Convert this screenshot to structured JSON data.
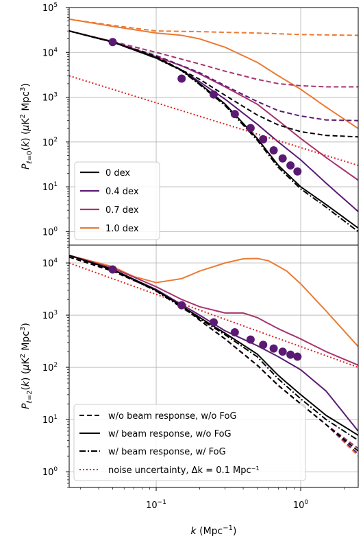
{
  "chart_data": [
    {
      "type": "line",
      "panel": "top",
      "xscale": "log",
      "yscale": "log",
      "xlim": [
        0.025,
        2.5
      ],
      "ylim": [
        0.5,
        100000
      ],
      "ylabel": "P_{ℓ=0}(k) (μK² Mpc³)",
      "grid": true,
      "legend_position": "lower-left",
      "y_tick_labels": [
        "10^0",
        "10^1",
        "10^2",
        "10^3",
        "10^4",
        "10^5"
      ],
      "legend": [
        "0 dex",
        "0.4 dex",
        "0.7 dex",
        "1.0 dex"
      ],
      "colors": {
        "0 dex": "#000000",
        "0.4 dex": "#5a1a73",
        "0.7 dex": "#a8336e",
        "1.0 dex": "#ec7a33",
        "noise": "#e0201f"
      },
      "series": [
        {
          "name": "0 dex",
          "style": "dashed",
          "x": [
            0.025,
            0.05,
            0.1,
            0.2,
            0.3,
            0.5,
            0.7,
            1.0,
            1.5,
            2.5
          ],
          "y": [
            30000,
            17000,
            8000,
            2500,
            1100,
            400,
            240,
            170,
            140,
            130
          ]
        },
        {
          "name": "0 dex",
          "style": "solid",
          "x": [
            0.025,
            0.05,
            0.1,
            0.15,
            0.2,
            0.3,
            0.5,
            0.7,
            1.0,
            1.5,
            2.5
          ],
          "y": [
            30000,
            17000,
            7500,
            4000,
            2000,
            700,
            120,
            30,
            10,
            4,
            1.2
          ]
        },
        {
          "name": "0 dex",
          "style": "dashdot",
          "x": [
            0.025,
            0.05,
            0.1,
            0.15,
            0.2,
            0.3,
            0.5,
            0.7,
            1.0,
            1.5,
            2.5
          ],
          "y": [
            30000,
            17000,
            7400,
            3900,
            1900,
            650,
            110,
            27,
            9,
            3.5,
            1.0
          ]
        },
        {
          "name": "0.4 dex",
          "style": "dashed",
          "x": [
            0.025,
            0.05,
            0.1,
            0.2,
            0.3,
            0.5,
            0.7,
            1.0,
            1.5,
            2.5
          ],
          "y": [
            30000,
            17000,
            8500,
            3500,
            1800,
            800,
            500,
            380,
            310,
            300
          ]
        },
        {
          "name": "0.4 dex",
          "style": "solid",
          "x": [
            0.025,
            0.05,
            0.1,
            0.15,
            0.2,
            0.3,
            0.5,
            0.7,
            1.0,
            1.5,
            2.5
          ],
          "y": [
            30000,
            17000,
            7600,
            4000,
            2200,
            900,
            250,
            100,
            40,
            12,
            2.8
          ]
        },
        {
          "name": "0.7 dex",
          "style": "dashed",
          "x": [
            0.025,
            0.05,
            0.1,
            0.2,
            0.3,
            0.5,
            0.7,
            1.0,
            1.5,
            2.5
          ],
          "y": [
            30000,
            17500,
            10000,
            5500,
            3800,
            2500,
            2000,
            1800,
            1700,
            1700
          ]
        },
        {
          "name": "0.7 dex",
          "style": "solid",
          "x": [
            0.025,
            0.05,
            0.1,
            0.15,
            0.2,
            0.3,
            0.5,
            0.7,
            1.0,
            1.5,
            2.5
          ],
          "y": [
            30000,
            17500,
            8000,
            5000,
            3300,
            1700,
            700,
            300,
            120,
            45,
            14
          ]
        },
        {
          "name": "1.0 dex",
          "style": "dashed",
          "x": [
            0.025,
            0.05,
            0.1,
            0.2,
            0.3,
            0.5,
            1.0,
            2.5
          ],
          "y": [
            55000,
            40000,
            30000,
            29000,
            28000,
            27000,
            25000,
            24000
          ]
        },
        {
          "name": "1.0 dex",
          "style": "solid",
          "x": [
            0.025,
            0.05,
            0.1,
            0.15,
            0.2,
            0.3,
            0.5,
            0.7,
            1.0,
            1.5,
            2.5
          ],
          "y": [
            55000,
            38000,
            27000,
            24000,
            20000,
            13000,
            6000,
            3000,
            1500,
            600,
            200
          ]
        },
        {
          "name": "noise",
          "style": "dotted",
          "x": [
            0.025,
            2.5
          ],
          "y": [
            3000,
            30
          ]
        }
      ],
      "markers": [
        {
          "series": "0.4 dex",
          "x": [
            0.05,
            0.15,
            0.25,
            0.35,
            0.45,
            0.55,
            0.65,
            0.75,
            0.85,
            0.95
          ],
          "y": [
            17000,
            2600,
            1150,
            420,
            205,
            115,
            65,
            43,
            30,
            22
          ]
        }
      ]
    },
    {
      "type": "line",
      "panel": "bottom",
      "xscale": "log",
      "yscale": "log",
      "xlim": [
        0.025,
        2.5
      ],
      "ylim": [
        0.5,
        22000
      ],
      "xlabel": "k (Mpc⁻¹)",
      "ylabel": "P_{ℓ=2}(k) (μK² Mpc³)",
      "grid": true,
      "legend_position": "lower-left",
      "x_tick_labels": [
        "10^-1",
        "10^0"
      ],
      "y_tick_labels": [
        "10^0",
        "10^1",
        "10^2",
        "10^3",
        "10^4"
      ],
      "legend": [
        "w/o beam response, w/o FoG",
        "w/ beam response, w/o FoG",
        "w/ beam response, w/ FoG",
        "noise uncertainty, Δk = 0.1 Mpc⁻¹"
      ],
      "series": [
        {
          "name": "0 dex",
          "style": "dashed",
          "x": [
            0.025,
            0.05,
            0.1,
            0.15,
            0.2,
            0.3,
            0.5,
            0.7,
            1.0,
            1.5,
            2.5
          ],
          "y": [
            13000,
            7000,
            3000,
            1500,
            800,
            350,
            110,
            45,
            20,
            8,
            2.5
          ]
        },
        {
          "name": "0 dex",
          "style": "solid",
          "x": [
            0.025,
            0.05,
            0.1,
            0.15,
            0.2,
            0.3,
            0.5,
            0.7,
            1.0,
            1.5,
            2.5
          ],
          "y": [
            14000,
            7500,
            3000,
            1500,
            900,
            450,
            180,
            70,
            30,
            12,
            5
          ]
        },
        {
          "name": "0 dex",
          "style": "dashdot",
          "x": [
            0.025,
            0.05,
            0.1,
            0.15,
            0.2,
            0.3,
            0.5,
            0.7,
            1.0,
            1.5,
            2.5
          ],
          "y": [
            14000,
            7400,
            2900,
            1400,
            850,
            420,
            160,
            60,
            25,
            10,
            4
          ]
        },
        {
          "name": "0.4 dex",
          "style": "dashed",
          "x": [
            0.025,
            0.05,
            0.1,
            0.15,
            0.2,
            0.3,
            0.5,
            0.7,
            1.0,
            1.5,
            2.5
          ],
          "y": [
            13000,
            7000,
            3000,
            1500,
            800,
            350,
            110,
            45,
            20,
            8,
            2.2
          ]
        },
        {
          "name": "0.4 dex",
          "style": "solid",
          "x": [
            0.025,
            0.05,
            0.1,
            0.15,
            0.2,
            0.3,
            0.5,
            0.7,
            1.0,
            1.5,
            2.5
          ],
          "y": [
            14000,
            7500,
            3100,
            1600,
            1000,
            500,
            260,
            160,
            90,
            35,
            6
          ]
        },
        {
          "name": "0.7 dex",
          "style": "dashed",
          "x": [
            0.025,
            0.05,
            0.1,
            0.15,
            0.2,
            0.3,
            0.5,
            0.7,
            1.0,
            1.5,
            2.5
          ],
          "y": [
            13000,
            7000,
            3000,
            1500,
            800,
            350,
            110,
            45,
            20,
            8,
            2.8
          ]
        },
        {
          "name": "0.7 dex",
          "style": "solid",
          "x": [
            0.025,
            0.05,
            0.1,
            0.15,
            0.2,
            0.3,
            0.4,
            0.5,
            0.7,
            1.0,
            1.5,
            2.5
          ],
          "y": [
            14000,
            8000,
            3500,
            2000,
            1450,
            1100,
            1100,
            900,
            550,
            350,
            200,
            110
          ]
        },
        {
          "name": "1.0 dex",
          "style": "dashed",
          "x": [
            0.025,
            0.05,
            0.1,
            0.15,
            0.2,
            0.3,
            0.5,
            0.7,
            1.0,
            1.5,
            2.5
          ],
          "y": [
            13000,
            7000,
            3000,
            1500,
            800,
            350,
            110,
            45,
            20,
            8,
            2
          ]
        },
        {
          "name": "1.0 dex",
          "style": "solid",
          "x": [
            0.025,
            0.05,
            0.07,
            0.1,
            0.15,
            0.2,
            0.3,
            0.4,
            0.5,
            0.6,
            0.8,
            1.0,
            1.5,
            2.5
          ],
          "y": [
            14000,
            8500,
            5500,
            4200,
            5000,
            7000,
            10000,
            12000,
            12200,
            11000,
            7000,
            4000,
            1200,
            250
          ]
        },
        {
          "name": "noise",
          "style": "dotted",
          "x": [
            0.025,
            2.5
          ],
          "y": [
            10000,
            100
          ]
        }
      ],
      "markers": [
        {
          "series": "0.4 dex",
          "x": [
            0.05,
            0.15,
            0.25,
            0.35,
            0.45,
            0.55,
            0.65,
            0.75,
            0.85,
            0.95
          ],
          "y": [
            7500,
            1550,
            730,
            470,
            340,
            270,
            230,
            200,
            175,
            160
          ]
        }
      ]
    }
  ],
  "top_legend_labels": [
    "0 dex",
    "0.4 dex",
    "0.7 dex",
    "1.0 dex"
  ],
  "bottom_legend_labels": [
    "w/o beam response, w/o FoG",
    "w/ beam response, w/o FoG",
    "w/ beam response, w/ FoG",
    "noise uncertainty, Δk = 0.1 Mpc⁻¹"
  ]
}
